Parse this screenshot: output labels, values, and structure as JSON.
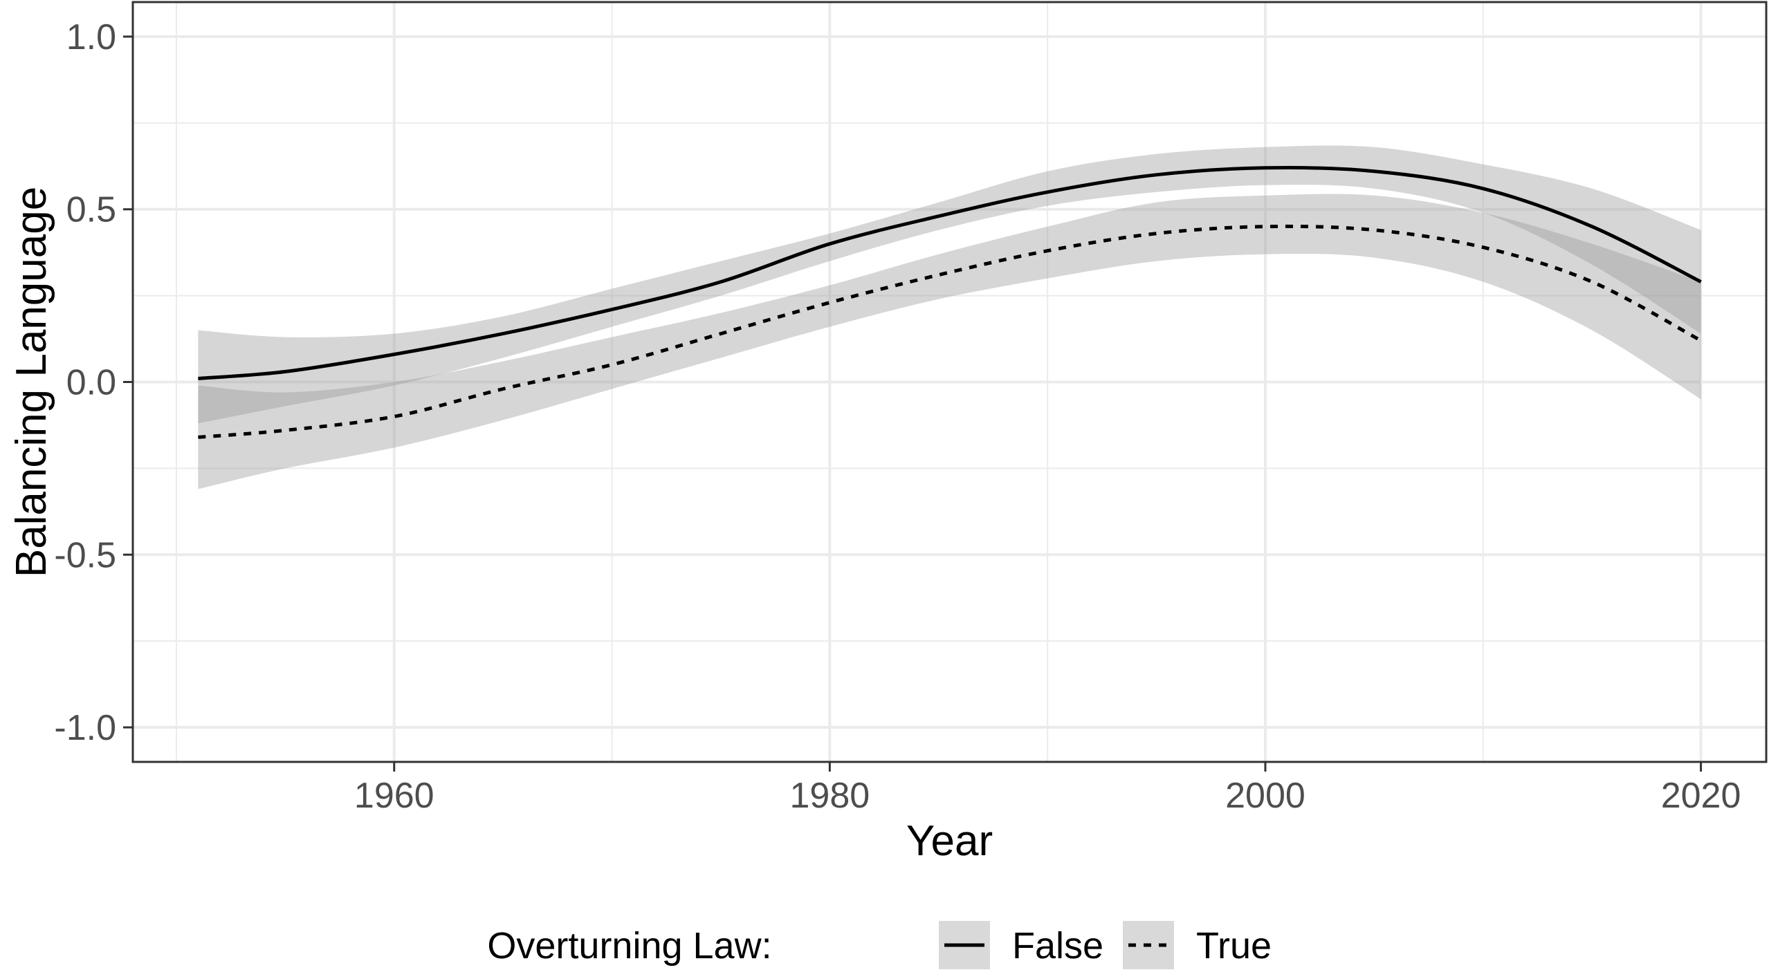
{
  "chart_data": {
    "type": "line",
    "title": "",
    "xlabel": "Year",
    "ylabel": "Balancing Language",
    "xlim": [
      1948,
      2023
    ],
    "ylim": [
      -1.1,
      1.1
    ],
    "x_ticks": [
      1960,
      1980,
      2000,
      2020
    ],
    "y_ticks": [
      1.0,
      0.5,
      0.0,
      -0.5,
      -1.0
    ],
    "y_tick_labels": [
      "1.0",
      "0.5",
      "0.0",
      "-0.5",
      "-1.0"
    ],
    "grid": true,
    "legend": {
      "title": "Overturning Law:",
      "position": "bottom",
      "entries": [
        "False",
        "True"
      ]
    },
    "series": [
      {
        "name": "False",
        "line_style": "solid",
        "color": "#000000",
        "x": [
          1951,
          1955,
          1960,
          1965,
          1970,
          1975,
          1980,
          1985,
          1990,
          1995,
          2000,
          2005,
          2010,
          2015,
          2020
        ],
        "y": [
          0.01,
          0.03,
          0.08,
          0.14,
          0.21,
          0.29,
          0.4,
          0.48,
          0.55,
          0.6,
          0.62,
          0.61,
          0.56,
          0.45,
          0.29
        ],
        "lower": [
          -0.12,
          -0.07,
          -0.01,
          0.07,
          0.16,
          0.25,
          0.35,
          0.44,
          0.51,
          0.55,
          0.57,
          0.56,
          0.49,
          0.34,
          0.14
        ],
        "upper": [
          0.15,
          0.13,
          0.14,
          0.19,
          0.27,
          0.35,
          0.43,
          0.52,
          0.61,
          0.66,
          0.68,
          0.68,
          0.63,
          0.56,
          0.44
        ]
      },
      {
        "name": "True",
        "line_style": "dashed",
        "color": "#000000",
        "x": [
          1951,
          1955,
          1960,
          1965,
          1970,
          1975,
          1980,
          1985,
          1990,
          1995,
          2000,
          2005,
          2010,
          2015,
          2020
        ],
        "y": [
          -0.16,
          -0.14,
          -0.1,
          -0.02,
          0.05,
          0.14,
          0.23,
          0.31,
          0.38,
          0.43,
          0.45,
          0.44,
          0.39,
          0.29,
          0.12
        ],
        "lower": [
          -0.31,
          -0.25,
          -0.19,
          -0.11,
          -0.02,
          0.07,
          0.16,
          0.24,
          0.3,
          0.35,
          0.37,
          0.36,
          0.29,
          0.15,
          -0.05
        ],
        "upper": [
          -0.01,
          -0.03,
          0.0,
          0.06,
          0.13,
          0.2,
          0.28,
          0.37,
          0.45,
          0.52,
          0.54,
          0.54,
          0.49,
          0.4,
          0.29
        ]
      }
    ]
  }
}
